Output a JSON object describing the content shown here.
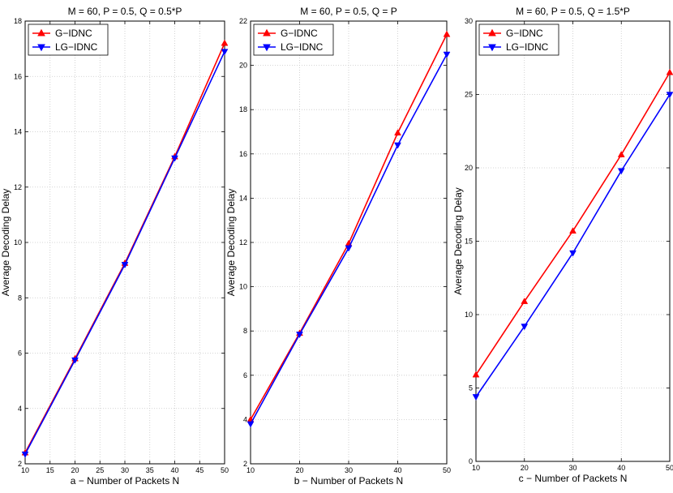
{
  "chart_data": [
    {
      "type": "line",
      "title": "M = 60, P = 0.5, Q = 0.5*P",
      "xlabel": "a − Number of Packets N",
      "ylabel": "Average Decoding Delay",
      "xlim": [
        10,
        50
      ],
      "ylim": [
        2,
        18
      ],
      "xticks": [
        10,
        15,
        20,
        25,
        30,
        35,
        40,
        45,
        50
      ],
      "yticks": [
        2,
        4,
        6,
        8,
        10,
        12,
        14,
        16,
        18
      ],
      "grid": true,
      "legend_position": "top-left",
      "x": [
        10,
        20,
        30,
        40,
        50
      ],
      "series": [
        {
          "name": "G−IDNC",
          "color": "#ff0000",
          "marker": "triangle-up",
          "values": [
            2.4,
            5.8,
            9.25,
            13.1,
            17.2
          ]
        },
        {
          "name": "LG−IDNC",
          "color": "#0000ff",
          "marker": "triangle-down",
          "values": [
            2.35,
            5.75,
            9.2,
            13.05,
            16.9
          ]
        }
      ]
    },
    {
      "type": "line",
      "title": "M = 60, P = 0.5, Q = P",
      "xlabel": "b − Number of Packets N",
      "ylabel": "Average Decoding Delay",
      "xlim": [
        10,
        50
      ],
      "ylim": [
        2,
        22
      ],
      "xticks": [
        10,
        20,
        30,
        40,
        50
      ],
      "yticks": [
        2,
        4,
        6,
        8,
        10,
        12,
        14,
        16,
        18,
        20,
        22
      ],
      "grid": true,
      "legend_position": "top-left",
      "x": [
        10,
        20,
        30,
        40,
        50
      ],
      "series": [
        {
          "name": "G−IDNC",
          "color": "#ff0000",
          "marker": "triangle-up",
          "values": [
            4.0,
            7.9,
            11.95,
            16.95,
            21.4
          ]
        },
        {
          "name": "LG−IDNC",
          "color": "#0000ff",
          "marker": "triangle-down",
          "values": [
            3.8,
            7.85,
            11.75,
            16.4,
            20.5
          ]
        }
      ]
    },
    {
      "type": "line",
      "title": "M = 60, P = 0.5, Q = 1.5*P",
      "xlabel": "c − Number of Packets N",
      "ylabel": "Average Decoding Delay",
      "xlim": [
        10,
        50
      ],
      "ylim": [
        0,
        30
      ],
      "xticks": [
        10,
        20,
        30,
        40,
        50
      ],
      "yticks": [
        0,
        5,
        10,
        15,
        20,
        25,
        30
      ],
      "grid": true,
      "legend_position": "top-left",
      "x": [
        10,
        20,
        30,
        40,
        50
      ],
      "series": [
        {
          "name": "G−IDNC",
          "color": "#ff0000",
          "marker": "triangle-up",
          "values": [
            5.9,
            10.9,
            15.7,
            20.9,
            26.5
          ]
        },
        {
          "name": "LG−IDNC",
          "color": "#0000ff",
          "marker": "triangle-down",
          "values": [
            4.4,
            9.2,
            14.2,
            19.8,
            25.0
          ]
        }
      ]
    }
  ]
}
